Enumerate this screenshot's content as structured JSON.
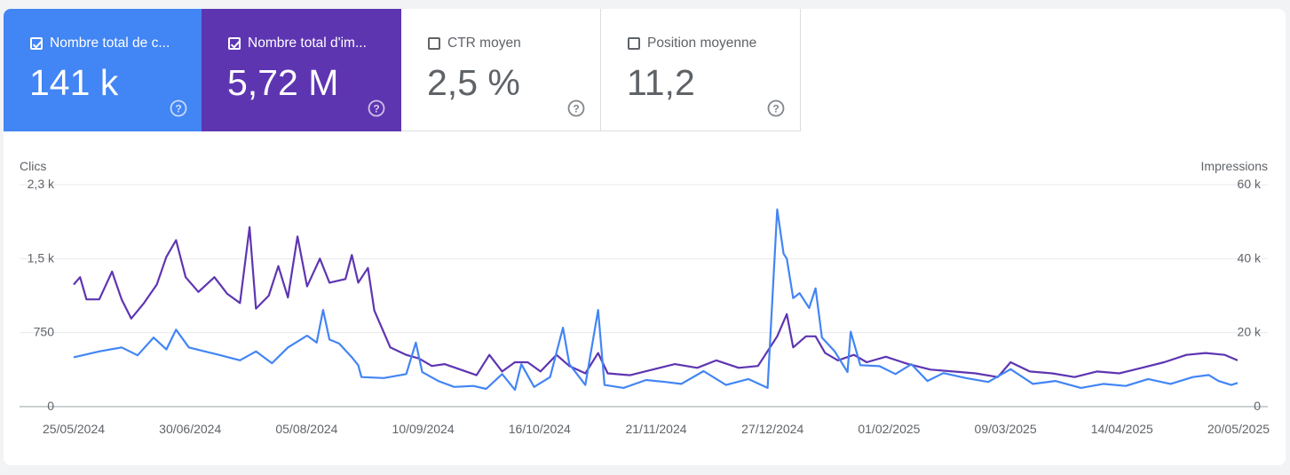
{
  "cards": [
    {
      "label": "Nombre total de c...",
      "value": "141 k",
      "checked": true,
      "color": "#4285f4"
    },
    {
      "label": "Nombre total d'im...",
      "value": "5,72 M",
      "checked": true,
      "color": "#5e35b1"
    },
    {
      "label": "CTR moyen",
      "value": "2,5 %",
      "checked": false
    },
    {
      "label": "Position moyenne",
      "value": "11,2",
      "checked": false
    }
  ],
  "chart_data": {
    "type": "line",
    "left_axis_label": "Clics",
    "right_axis_label": "Impressions",
    "left_ticks": [
      "2,3 k",
      "1,5 k",
      "750",
      "0"
    ],
    "right_ticks": [
      "60 k",
      "40 k",
      "20 k",
      "0"
    ],
    "left_ylim": [
      0,
      2250
    ],
    "right_ylim": [
      0,
      60000
    ],
    "x_range": [
      "2024-05-25",
      "2025-05-24"
    ],
    "x_ticks": [
      "25/05/2024",
      "30/06/2024",
      "05/08/2024",
      "10/09/2024",
      "16/10/2024",
      "21/11/2024",
      "27/12/2024",
      "01/02/2025",
      "09/03/2025",
      "14/04/2025",
      "20/05/2025"
    ],
    "grid": true,
    "series": [
      {
        "name": "Nombre total de clics",
        "axis": "left",
        "color": "#4285f4",
        "points": [
          [
            "2024-05-25",
            500
          ],
          [
            "2024-06-02",
            560
          ],
          [
            "2024-06-09",
            600
          ],
          [
            "2024-06-14",
            520
          ],
          [
            "2024-06-19",
            700
          ],
          [
            "2024-06-23",
            580
          ],
          [
            "2024-06-26",
            780
          ],
          [
            "2024-06-30",
            600
          ],
          [
            "2024-07-05",
            560
          ],
          [
            "2024-07-10",
            520
          ],
          [
            "2024-07-16",
            470
          ],
          [
            "2024-07-21",
            560
          ],
          [
            "2024-07-26",
            440
          ],
          [
            "2024-07-31",
            600
          ],
          [
            "2024-08-03",
            660
          ],
          [
            "2024-08-06",
            720
          ],
          [
            "2024-08-09",
            650
          ],
          [
            "2024-08-11",
            980
          ],
          [
            "2024-08-13",
            680
          ],
          [
            "2024-08-16",
            640
          ],
          [
            "2024-08-20",
            500
          ],
          [
            "2024-08-22",
            420
          ],
          [
            "2024-08-23",
            300
          ],
          [
            "2024-08-30",
            290
          ],
          [
            "2024-09-06",
            330
          ],
          [
            "2024-09-09",
            650
          ],
          [
            "2024-09-11",
            350
          ],
          [
            "2024-09-16",
            260
          ],
          [
            "2024-09-21",
            200
          ],
          [
            "2024-09-27",
            210
          ],
          [
            "2024-10-01",
            180
          ],
          [
            "2024-10-06",
            330
          ],
          [
            "2024-10-10",
            170
          ],
          [
            "2024-10-12",
            430
          ],
          [
            "2024-10-16",
            200
          ],
          [
            "2024-10-21",
            300
          ],
          [
            "2024-10-25",
            800
          ],
          [
            "2024-10-27",
            430
          ],
          [
            "2024-11-01",
            220
          ],
          [
            "2024-11-05",
            980
          ],
          [
            "2024-11-07",
            220
          ],
          [
            "2024-11-13",
            190
          ],
          [
            "2024-11-20",
            270
          ],
          [
            "2024-11-26",
            250
          ],
          [
            "2024-12-01",
            230
          ],
          [
            "2024-12-08",
            360
          ],
          [
            "2024-12-15",
            220
          ],
          [
            "2024-12-22",
            280
          ],
          [
            "2024-12-28",
            190
          ],
          [
            "2024-12-31",
            2000
          ],
          [
            "2025-01-02",
            1550
          ],
          [
            "2025-01-03",
            1500
          ],
          [
            "2025-01-05",
            1100
          ],
          [
            "2025-01-07",
            1150
          ],
          [
            "2025-01-10",
            1000
          ],
          [
            "2025-01-12",
            1200
          ],
          [
            "2025-01-14",
            700
          ],
          [
            "2025-01-18",
            560
          ],
          [
            "2025-01-22",
            350
          ],
          [
            "2025-01-23",
            760
          ],
          [
            "2025-01-26",
            420
          ],
          [
            "2025-02-01",
            410
          ],
          [
            "2025-02-06",
            330
          ],
          [
            "2025-02-11",
            430
          ],
          [
            "2025-02-16",
            260
          ],
          [
            "2025-02-21",
            340
          ],
          [
            "2025-02-28",
            290
          ],
          [
            "2025-03-07",
            250
          ],
          [
            "2025-03-14",
            380
          ],
          [
            "2025-03-21",
            230
          ],
          [
            "2025-03-28",
            260
          ],
          [
            "2025-04-05",
            190
          ],
          [
            "2025-04-12",
            230
          ],
          [
            "2025-04-19",
            210
          ],
          [
            "2025-04-26",
            280
          ],
          [
            "2025-05-03",
            230
          ],
          [
            "2025-05-10",
            300
          ],
          [
            "2025-05-15",
            320
          ],
          [
            "2025-05-18",
            260
          ],
          [
            "2025-05-22",
            220
          ],
          [
            "2025-05-24",
            240
          ]
        ]
      },
      {
        "name": "Nombre total d'impressions",
        "axis": "right",
        "color": "#5e35b1",
        "points": [
          [
            "2024-05-25",
            33000
          ],
          [
            "2024-05-27",
            35000
          ],
          [
            "2024-05-29",
            29000
          ],
          [
            "2024-06-02",
            29000
          ],
          [
            "2024-06-06",
            36500
          ],
          [
            "2024-06-09",
            29000
          ],
          [
            "2024-06-12",
            23800
          ],
          [
            "2024-06-16",
            28000
          ],
          [
            "2024-06-20",
            33000
          ],
          [
            "2024-06-23",
            40500
          ],
          [
            "2024-06-26",
            45000
          ],
          [
            "2024-06-29",
            35000
          ],
          [
            "2024-07-03",
            31000
          ],
          [
            "2024-07-08",
            35000
          ],
          [
            "2024-07-12",
            30500
          ],
          [
            "2024-07-16",
            28000
          ],
          [
            "2024-07-19",
            48500
          ],
          [
            "2024-07-21",
            26500
          ],
          [
            "2024-07-25",
            30000
          ],
          [
            "2024-07-28",
            38000
          ],
          [
            "2024-07-31",
            29500
          ],
          [
            "2024-08-03",
            46000
          ],
          [
            "2024-08-06",
            32500
          ],
          [
            "2024-08-10",
            40000
          ],
          [
            "2024-08-13",
            33500
          ],
          [
            "2024-08-18",
            34500
          ],
          [
            "2024-08-20",
            41000
          ],
          [
            "2024-08-22",
            33500
          ],
          [
            "2024-08-25",
            37500
          ],
          [
            "2024-08-27",
            26000
          ],
          [
            "2024-09-01",
            16000
          ],
          [
            "2024-09-06",
            14000
          ],
          [
            "2024-09-10",
            13000
          ],
          [
            "2024-09-14",
            11000
          ],
          [
            "2024-09-18",
            11500
          ],
          [
            "2024-09-23",
            10000
          ],
          [
            "2024-09-28",
            8500
          ],
          [
            "2024-10-02",
            14000
          ],
          [
            "2024-10-06",
            9500
          ],
          [
            "2024-10-10",
            12000
          ],
          [
            "2024-10-14",
            12000
          ],
          [
            "2024-10-18",
            9500
          ],
          [
            "2024-10-23",
            14000
          ],
          [
            "2024-10-27",
            11000
          ],
          [
            "2024-11-01",
            9000
          ],
          [
            "2024-11-05",
            14500
          ],
          [
            "2024-11-08",
            9000
          ],
          [
            "2024-11-15",
            8500
          ],
          [
            "2024-11-22",
            10000
          ],
          [
            "2024-11-29",
            11500
          ],
          [
            "2024-12-06",
            10500
          ],
          [
            "2024-12-12",
            12500
          ],
          [
            "2024-12-19",
            10500
          ],
          [
            "2024-12-25",
            11000
          ],
          [
            "2024-12-31",
            19000
          ],
          [
            "2025-01-03",
            25000
          ],
          [
            "2025-01-05",
            16000
          ],
          [
            "2025-01-09",
            19000
          ],
          [
            "2025-01-12",
            19000
          ],
          [
            "2025-01-15",
            14500
          ],
          [
            "2025-01-19",
            12500
          ],
          [
            "2025-01-24",
            14000
          ],
          [
            "2025-01-28",
            12000
          ],
          [
            "2025-02-03",
            13500
          ],
          [
            "2025-02-10",
            11500
          ],
          [
            "2025-02-17",
            10000
          ],
          [
            "2025-02-24",
            9500
          ],
          [
            "2025-03-03",
            9000
          ],
          [
            "2025-03-10",
            8000
          ],
          [
            "2025-03-14",
            12000
          ],
          [
            "2025-03-20",
            9500
          ],
          [
            "2025-03-27",
            9000
          ],
          [
            "2025-04-03",
            8000
          ],
          [
            "2025-04-10",
            9500
          ],
          [
            "2025-04-17",
            9000
          ],
          [
            "2025-04-24",
            10500
          ],
          [
            "2025-05-01",
            12000
          ],
          [
            "2025-05-08",
            14000
          ],
          [
            "2025-05-14",
            14500
          ],
          [
            "2025-05-20",
            14000
          ],
          [
            "2025-05-24",
            12500
          ]
        ]
      }
    ]
  }
}
